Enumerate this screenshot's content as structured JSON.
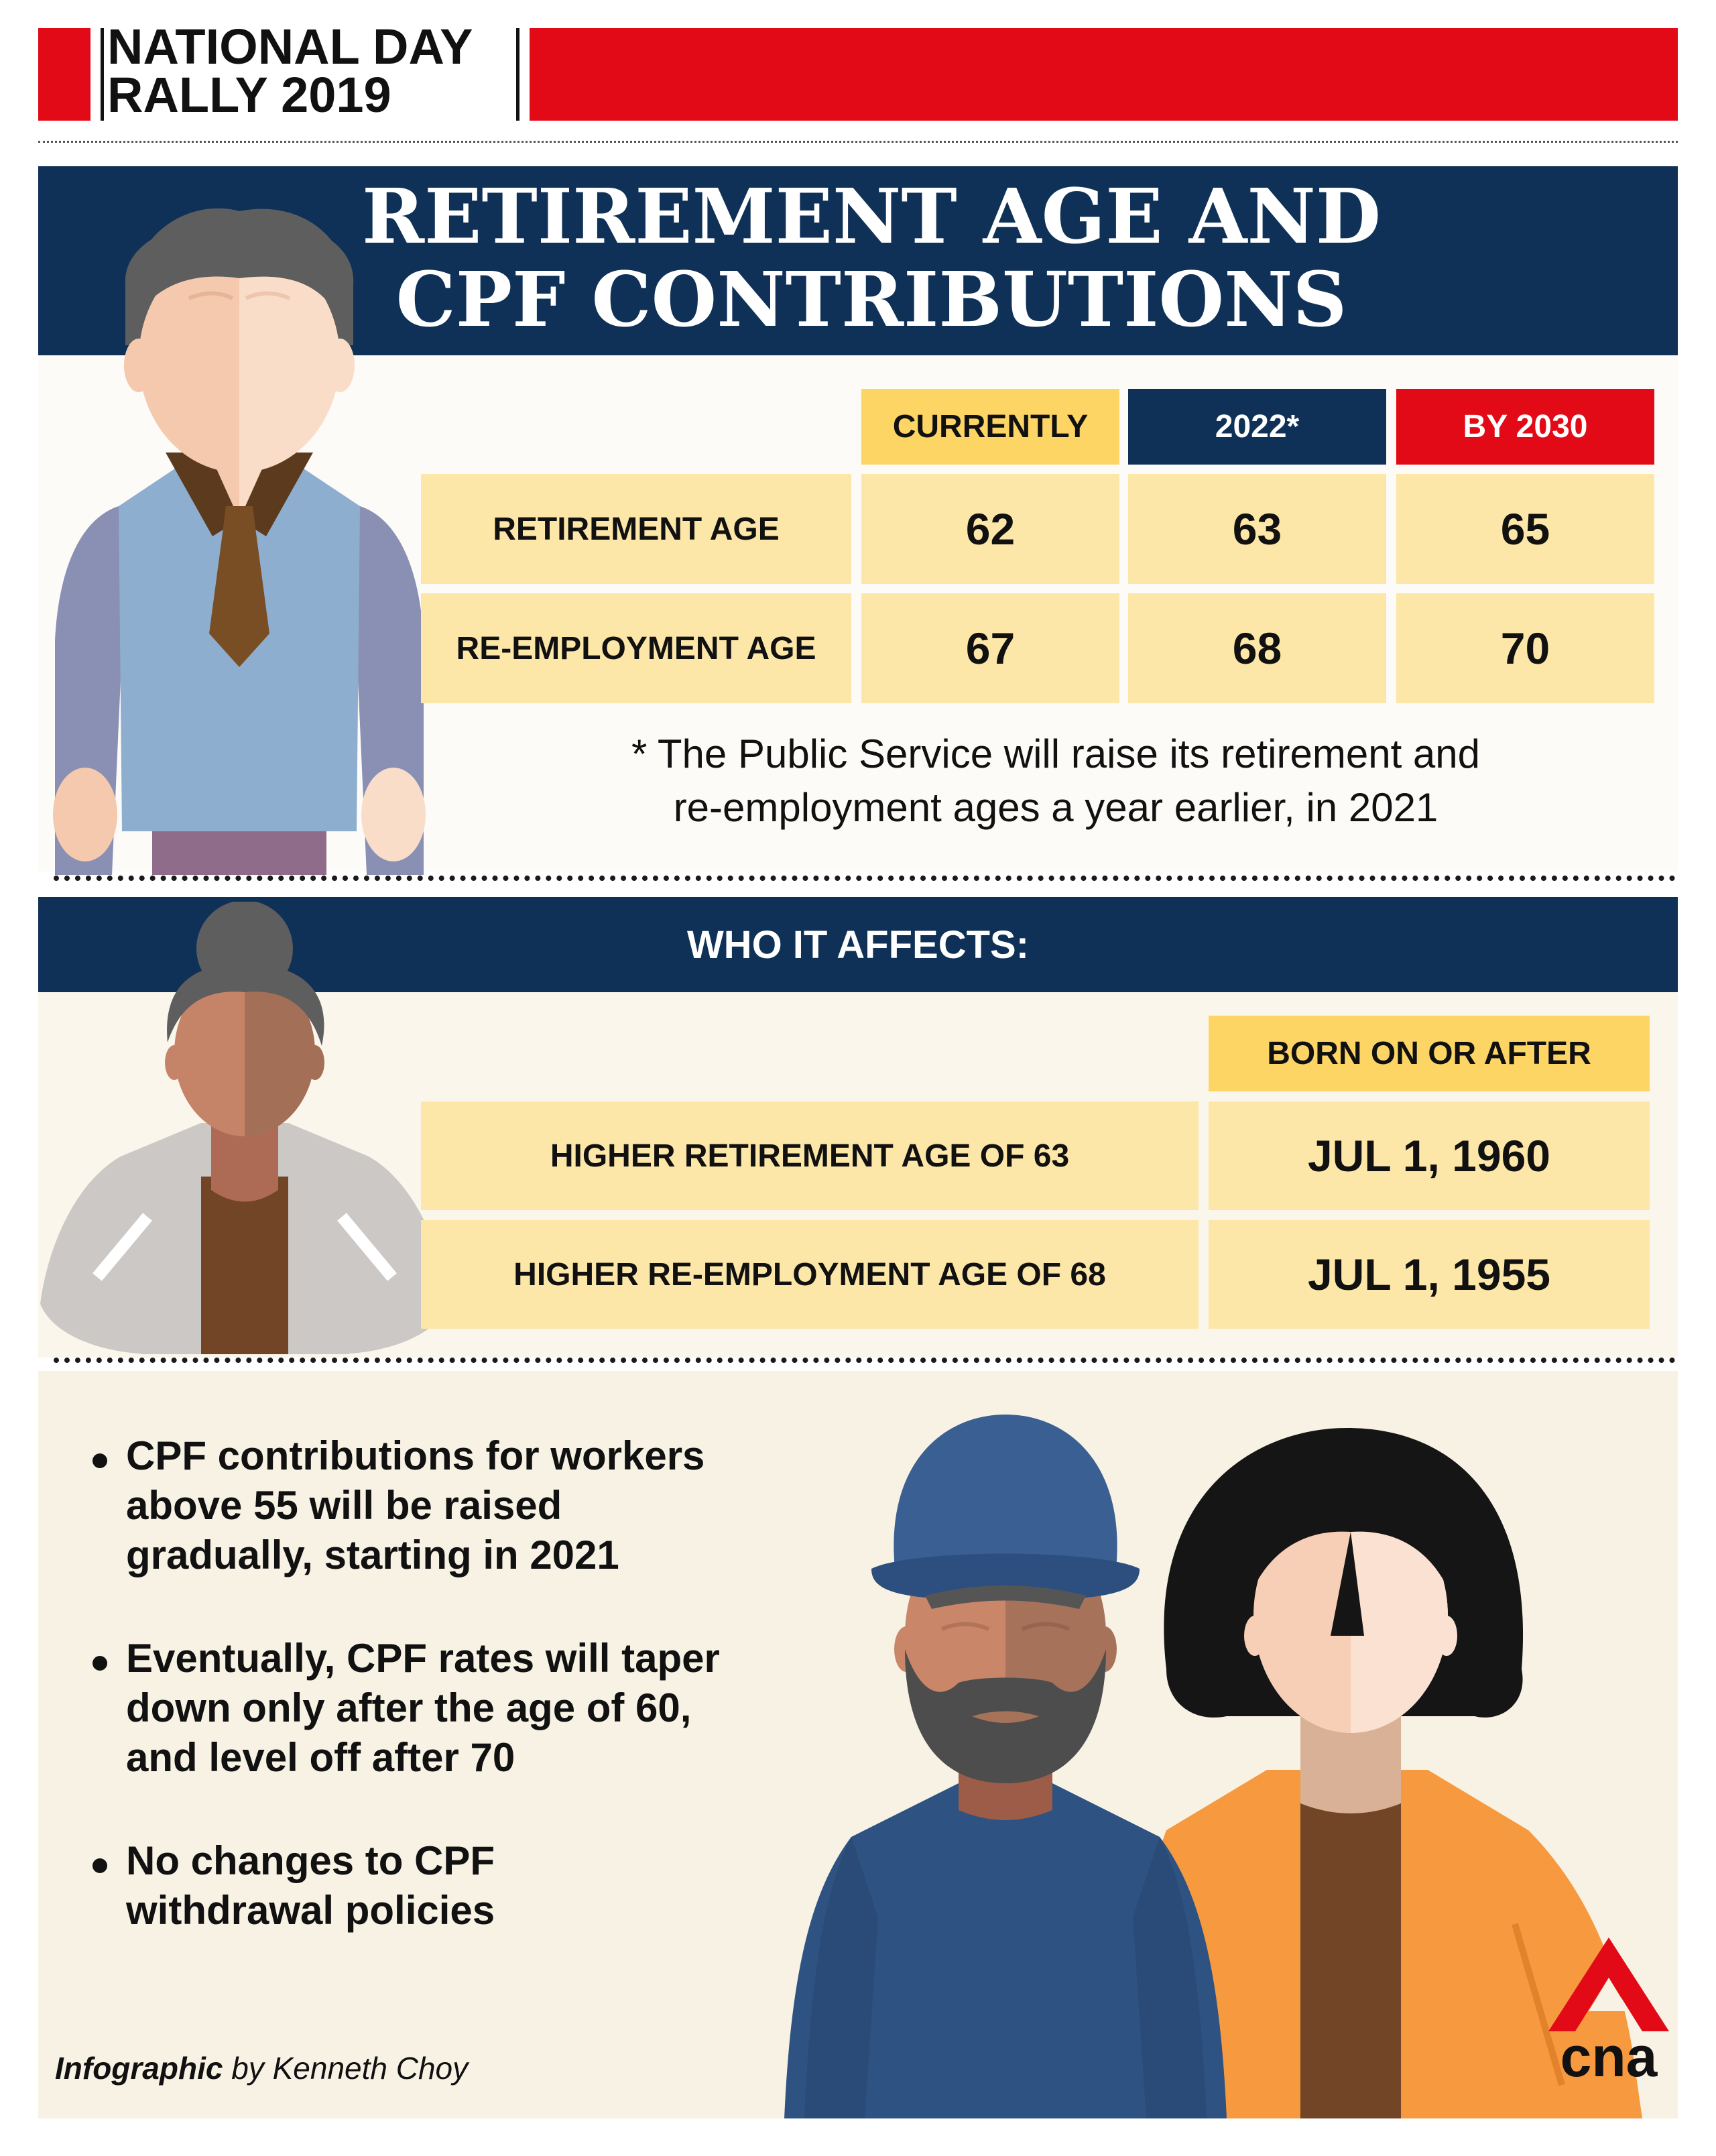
{
  "header": {
    "event_line1": "NATIONAL DAY",
    "event_line2": "RALLY 2019"
  },
  "title": {
    "line1": "RETIREMENT AGE AND",
    "line2": "CPF CONTRIBUTIONS"
  },
  "age_table": {
    "columns": [
      "CURRENTLY",
      "2022*",
      "BY 2030"
    ],
    "rows": [
      {
        "label": "RETIREMENT AGE",
        "values": [
          "62",
          "63",
          "65"
        ]
      },
      {
        "label": "RE-EMPLOYMENT AGE",
        "values": [
          "67",
          "68",
          "70"
        ]
      }
    ],
    "footnote_line1": "* The Public Service will raise its retirement and",
    "footnote_line2": "re-employment ages a year earlier, in 2021"
  },
  "affects": {
    "heading": "WHO IT AFFECTS:",
    "column": "BORN ON OR AFTER",
    "rows": [
      {
        "label": "HIGHER RETIREMENT AGE OF 63",
        "value": "JUL 1, 1960"
      },
      {
        "label": "HIGHER RE-EMPLOYMENT AGE OF 68",
        "value": "JUL 1, 1955"
      }
    ]
  },
  "bullets": [
    {
      "lines": [
        "CPF contributions for workers",
        "above 55 will be raised",
        "gradually, starting in 2021"
      ]
    },
    {
      "lines": [
        "Eventually, CPF rates will taper",
        "down only after the age of 60,",
        "and level off after 70"
      ]
    },
    {
      "lines": [
        "No changes to CPF",
        "withdrawal policies"
      ]
    }
  ],
  "credit": {
    "label": "Infographic",
    "author": "by Kenneth Choy"
  },
  "logo": {
    "text": "cna"
  },
  "colors": {
    "red": "#e20a17",
    "navy": "#0f3157",
    "yellow": "#fdd565",
    "cream": "#fde7a8",
    "background": "#f7f2e4"
  }
}
